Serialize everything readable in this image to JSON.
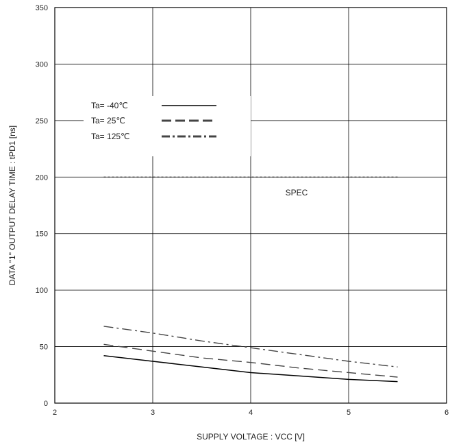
{
  "chart_data": {
    "type": "line",
    "title": "",
    "xlabel": "SUPPLY VOLTAGE : VCC [V]",
    "ylabel": "DATA \"1\" OUTPUT DELAY TIME : tPD1   [ns]",
    "xlim": [
      2,
      6
    ],
    "ylim": [
      0,
      350
    ],
    "xticks": [
      "2",
      "3",
      "4",
      "5",
      "6"
    ],
    "yticks": [
      "0",
      "50",
      "100",
      "150",
      "200",
      "250",
      "300",
      "350"
    ],
    "grid": true,
    "legend_position": "upper-left",
    "series": [
      {
        "name": "Ta= -40℃",
        "style": "solid",
        "color": "#000000",
        "x": [
          2.5,
          3.0,
          3.5,
          4.0,
          4.5,
          5.0,
          5.5
        ],
        "y": [
          42,
          37,
          32,
          27,
          24,
          21,
          19
        ]
      },
      {
        "name": "Ta=  25℃",
        "style": "dashed",
        "color": "#444444",
        "x": [
          2.5,
          3.0,
          3.5,
          4.0,
          4.5,
          5.0,
          5.5
        ],
        "y": [
          52,
          46,
          40,
          36,
          31,
          27,
          23
        ]
      },
      {
        "name": "Ta= 125℃",
        "style": "dashdot",
        "color": "#444444",
        "x": [
          2.5,
          3.0,
          3.5,
          4.0,
          4.5,
          5.0,
          5.5
        ],
        "y": [
          68,
          62,
          55,
          49,
          43,
          37,
          32
        ]
      }
    ],
    "spec": {
      "label": "SPEC",
      "y": 200,
      "x": [
        2.5,
        5.5
      ]
    }
  }
}
